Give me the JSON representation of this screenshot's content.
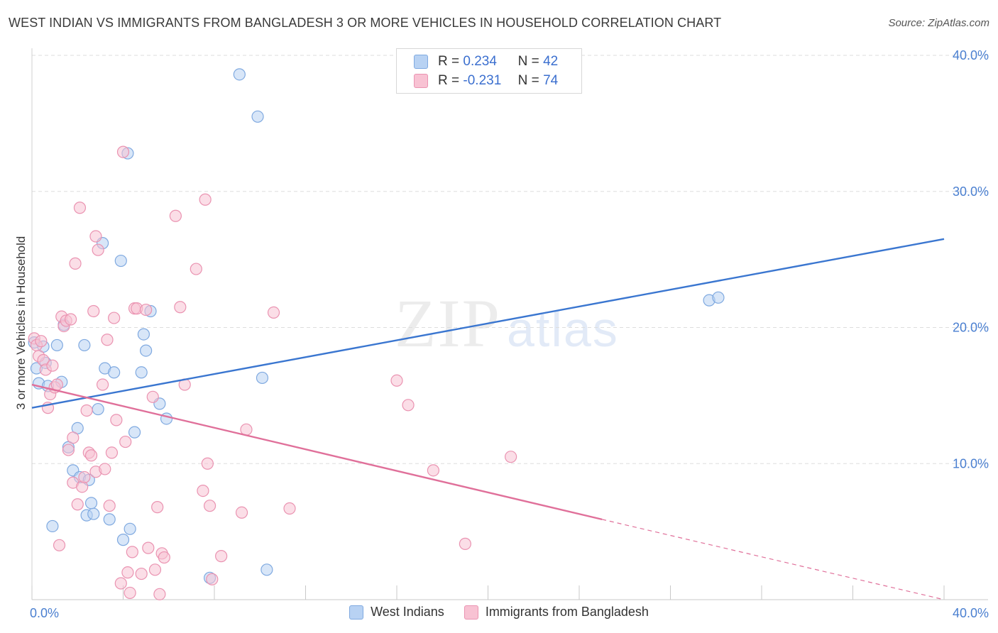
{
  "header": {
    "title": "WEST INDIAN VS IMMIGRANTS FROM BANGLADESH 3 OR MORE VEHICLES IN HOUSEHOLD CORRELATION CHART",
    "source": "Source: ZipAtlas.com"
  },
  "watermark": {
    "zip": "ZIP",
    "atlas": "atlas"
  },
  "legend": {
    "rows": [
      {
        "r_label": "R =",
        "r_value": "0.234",
        "n_label": "N =",
        "n_value": "42"
      },
      {
        "r_label": "R =",
        "r_value": "-0.231",
        "n_label": "N =",
        "n_value": "74"
      }
    ]
  },
  "colors": {
    "blue_fill": "#b8d2f3",
    "blue_stroke": "#7fa9e0",
    "blue_line": "#3a76d0",
    "pink_fill": "#f8c2d3",
    "pink_stroke": "#ea93b1",
    "pink_line": "#e0709a",
    "axis_text": "#4a7fd0",
    "grid": "#dddddd"
  },
  "chart_data": {
    "type": "scatter",
    "title": "WEST INDIAN VS IMMIGRANTS FROM BANGLADESH 3 OR MORE VEHICLES IN HOUSEHOLD CORRELATION CHART",
    "xlabel": "",
    "ylabel": "3 or more Vehicles in Household",
    "xlim": [
      0,
      40
    ],
    "ylim": [
      0,
      40
    ],
    "x_tick_labels": [
      "0.0%",
      "40.0%"
    ],
    "y_ticks": [
      10,
      20,
      30,
      40
    ],
    "y_tick_labels": [
      "10.0%",
      "20.0%",
      "30.0%",
      "40.0%"
    ],
    "grid": true,
    "legend_position": "bottom",
    "series": [
      {
        "name": "West Indians",
        "r": 0.234,
        "n": 42,
        "trend": {
          "x": [
            0,
            40
          ],
          "y": [
            14.1,
            26.5
          ]
        },
        "points": [
          [
            0.1,
            18.9
          ],
          [
            0.2,
            17.0
          ],
          [
            0.3,
            15.9
          ],
          [
            0.5,
            18.6
          ],
          [
            0.6,
            17.4
          ],
          [
            0.7,
            15.7
          ],
          [
            0.9,
            5.4
          ],
          [
            1.1,
            18.7
          ],
          [
            1.3,
            16.0
          ],
          [
            1.4,
            20.2
          ],
          [
            1.6,
            11.2
          ],
          [
            1.8,
            9.5
          ],
          [
            2.0,
            12.6
          ],
          [
            2.1,
            9.0
          ],
          [
            2.3,
            18.7
          ],
          [
            2.4,
            6.2
          ],
          [
            2.5,
            8.8
          ],
          [
            2.6,
            7.1
          ],
          [
            2.7,
            6.3
          ],
          [
            2.9,
            14.0
          ],
          [
            3.1,
            26.2
          ],
          [
            3.2,
            17.0
          ],
          [
            3.4,
            5.9
          ],
          [
            3.6,
            16.7
          ],
          [
            3.9,
            24.9
          ],
          [
            4.0,
            4.4
          ],
          [
            4.2,
            32.8
          ],
          [
            4.3,
            5.2
          ],
          [
            4.5,
            12.3
          ],
          [
            4.8,
            16.7
          ],
          [
            4.9,
            19.5
          ],
          [
            5.0,
            18.3
          ],
          [
            5.2,
            21.2
          ],
          [
            5.6,
            14.4
          ],
          [
            5.9,
            13.3
          ],
          [
            7.8,
            1.6
          ],
          [
            9.1,
            38.6
          ],
          [
            9.9,
            35.5
          ],
          [
            10.1,
            16.3
          ],
          [
            10.3,
            2.2
          ],
          [
            29.7,
            22.0
          ],
          [
            30.1,
            22.2
          ]
        ]
      },
      {
        "name": "Immigrants from Bangladesh",
        "r": -0.231,
        "n": 74,
        "trend": {
          "x": [
            0,
            25
          ],
          "y": [
            15.8,
            5.9
          ],
          "dashed_extension": {
            "x": [
              25,
              40
            ],
            "y": [
              5.9,
              0.0
            ]
          }
        },
        "points": [
          [
            0.1,
            19.2
          ],
          [
            0.2,
            18.7
          ],
          [
            0.3,
            17.9
          ],
          [
            0.4,
            19.0
          ],
          [
            0.5,
            17.6
          ],
          [
            0.6,
            16.9
          ],
          [
            0.7,
            14.1
          ],
          [
            0.8,
            15.1
          ],
          [
            0.9,
            17.2
          ],
          [
            1.0,
            15.6
          ],
          [
            1.1,
            15.8
          ],
          [
            1.2,
            4.0
          ],
          [
            1.3,
            20.8
          ],
          [
            1.4,
            20.1
          ],
          [
            1.5,
            20.5
          ],
          [
            1.6,
            11.0
          ],
          [
            1.7,
            20.6
          ],
          [
            1.8,
            11.9
          ],
          [
            1.8,
            8.6
          ],
          [
            1.9,
            24.7
          ],
          [
            2.0,
            7.0
          ],
          [
            2.1,
            28.8
          ],
          [
            2.2,
            8.3
          ],
          [
            2.3,
            9.0
          ],
          [
            2.4,
            13.9
          ],
          [
            2.5,
            10.8
          ],
          [
            2.6,
            10.6
          ],
          [
            2.7,
            21.2
          ],
          [
            2.8,
            9.4
          ],
          [
            2.8,
            26.7
          ],
          [
            2.9,
            25.7
          ],
          [
            3.1,
            15.8
          ],
          [
            3.2,
            9.6
          ],
          [
            3.3,
            19.1
          ],
          [
            3.4,
            6.9
          ],
          [
            3.5,
            10.8
          ],
          [
            3.6,
            20.7
          ],
          [
            3.7,
            13.2
          ],
          [
            3.9,
            1.2
          ],
          [
            4.0,
            32.9
          ],
          [
            4.1,
            11.6
          ],
          [
            4.2,
            2.0
          ],
          [
            4.3,
            0.5
          ],
          [
            4.4,
            3.5
          ],
          [
            4.5,
            21.4
          ],
          [
            4.6,
            21.4
          ],
          [
            4.8,
            1.9
          ],
          [
            5.0,
            21.3
          ],
          [
            5.1,
            3.8
          ],
          [
            5.3,
            14.9
          ],
          [
            5.4,
            2.2
          ],
          [
            5.5,
            6.8
          ],
          [
            5.6,
            0.4
          ],
          [
            5.7,
            3.4
          ],
          [
            5.8,
            3.1
          ],
          [
            6.3,
            28.2
          ],
          [
            6.5,
            21.5
          ],
          [
            6.7,
            15.8
          ],
          [
            7.2,
            24.3
          ],
          [
            7.5,
            8.0
          ],
          [
            7.6,
            29.4
          ],
          [
            7.7,
            10.0
          ],
          [
            7.8,
            6.9
          ],
          [
            7.9,
            1.5
          ],
          [
            8.3,
            3.2
          ],
          [
            9.2,
            6.4
          ],
          [
            9.4,
            12.5
          ],
          [
            10.6,
            21.1
          ],
          [
            11.3,
            6.7
          ],
          [
            16.0,
            16.1
          ],
          [
            16.5,
            14.3
          ],
          [
            17.6,
            9.5
          ],
          [
            19.0,
            4.1
          ],
          [
            21.0,
            10.5
          ]
        ]
      }
    ]
  }
}
